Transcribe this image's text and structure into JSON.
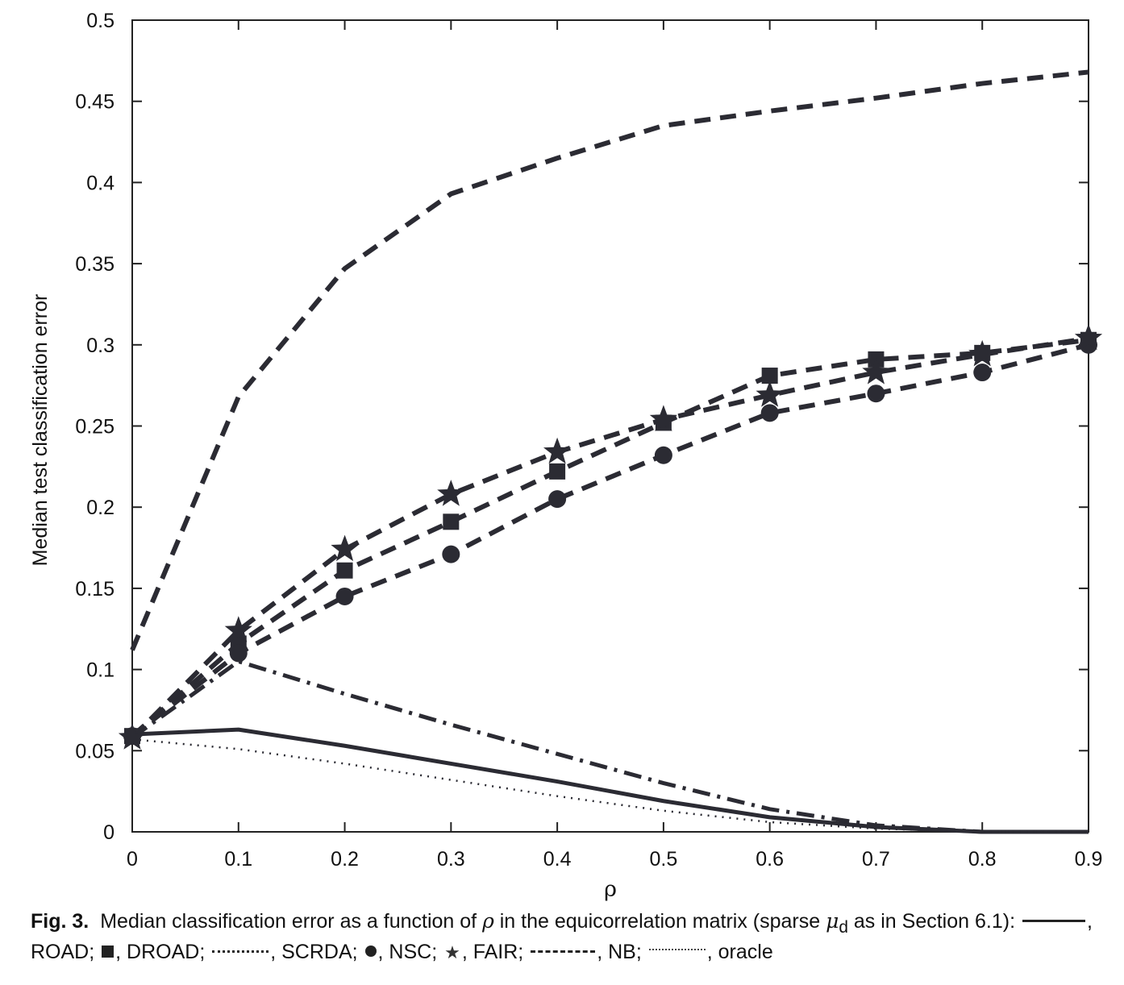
{
  "chart_data": {
    "type": "line",
    "xlabel": "ρ",
    "ylabel": "Median test classification error",
    "xlim": [
      0,
      0.9
    ],
    "ylim": [
      0,
      0.5
    ],
    "x": [
      0,
      0.1,
      0.2,
      0.3,
      0.4,
      0.5,
      0.6,
      0.7,
      0.8,
      0.9
    ],
    "xticks": [
      "0",
      "0.1",
      "0.2",
      "0.3",
      "0.4",
      "0.5",
      "0.6",
      "0.7",
      "0.8",
      "0.9"
    ],
    "yticks": [
      "0",
      "0.05",
      "0.1",
      "0.15",
      "0.2",
      "0.25",
      "0.3",
      "0.35",
      "0.4",
      "0.45",
      "0.5"
    ],
    "grid": false,
    "series": [
      {
        "name": "ROAD",
        "style": "solid",
        "marker": "none",
        "values": [
          0.06,
          0.063,
          0.053,
          0.042,
          0.031,
          0.019,
          0.009,
          0.003,
          0.0,
          0.0
        ]
      },
      {
        "name": "DROAD",
        "style": "dashed",
        "marker": "square",
        "values": [
          0.059,
          0.116,
          0.161,
          0.191,
          0.222,
          0.252,
          0.281,
          0.291,
          0.295,
          0.303
        ]
      },
      {
        "name": "SCRDA",
        "style": "dashdot",
        "marker": "none",
        "values": [
          0.058,
          0.105,
          0.085,
          0.066,
          0.048,
          0.03,
          0.014,
          0.004,
          0.0,
          0.0
        ]
      },
      {
        "name": "NSC",
        "style": "dashed",
        "marker": "circle",
        "values": [
          0.059,
          0.11,
          0.145,
          0.171,
          0.205,
          0.232,
          0.258,
          0.27,
          0.283,
          0.3
        ]
      },
      {
        "name": "FAIR",
        "style": "dashed",
        "marker": "star",
        "values": [
          0.058,
          0.124,
          0.174,
          0.208,
          0.234,
          0.254,
          0.269,
          0.283,
          0.294,
          0.304
        ]
      },
      {
        "name": "NB",
        "style": "dashed",
        "marker": "none",
        "values": [
          0.112,
          0.268,
          0.347,
          0.393,
          0.415,
          0.435,
          0.444,
          0.452,
          0.461,
          0.468
        ]
      },
      {
        "name": "oracle",
        "style": "dotted",
        "marker": "none",
        "values": [
          0.057,
          0.051,
          0.042,
          0.032,
          0.022,
          0.013,
          0.006,
          0.002,
          0.0,
          0.0
        ]
      }
    ]
  },
  "caption": {
    "fig_label": "Fig. 3.",
    "text_1": "Median classification error as a function of",
    "rho": "ρ",
    "text_2": "in the equicorrelation matrix (sparse",
    "mu": "μ",
    "mu_sub": "d",
    "text_3": "as in Section 6.1):",
    "road": ", ROAD;",
    "droad": ", DROAD;",
    "scrda": ", SCRDA;",
    "nsc": ", NSC;",
    "fair": ", FAIR;",
    "nb": ", NB;",
    "oracle": ", oracle"
  }
}
